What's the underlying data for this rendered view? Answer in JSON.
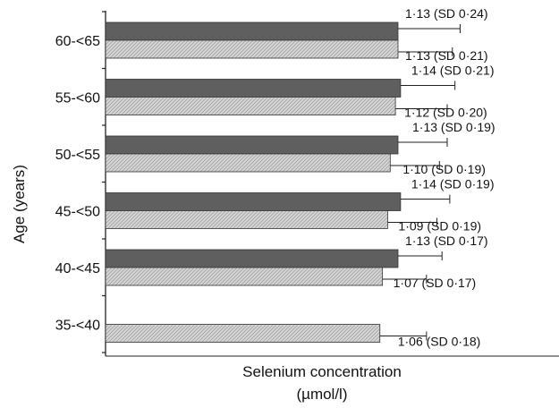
{
  "chart_data": {
    "type": "bar",
    "orientation": "horizontal",
    "ylabel": "Age (years)",
    "xlabel_lines": [
      "Selenium concentration",
      "(µmol/l)"
    ],
    "categories": [
      "60-<65",
      "55-<60",
      "50-<55",
      "45-<50",
      "40-<45",
      "35-<40"
    ],
    "series": [
      {
        "color": "#5f5f5f",
        "values": [
          1.13,
          1.14,
          1.13,
          1.14,
          1.13,
          null
        ],
        "sd": [
          0.24,
          0.21,
          0.19,
          0.19,
          0.17,
          null
        ],
        "labels": [
          "1·13 (SD 0·24)",
          "1·14 (SD 0·21)",
          "1·13 (SD 0·19)",
          "1·14 (SD 0·19)",
          "1·13 (SD 0·17)",
          ""
        ]
      },
      {
        "color": "#d2d2d2",
        "pattern": "hatched",
        "values": [
          1.13,
          1.12,
          1.1,
          1.09,
          1.07,
          1.06
        ],
        "sd": [
          0.21,
          0.2,
          0.19,
          0.19,
          0.17,
          0.18
        ],
        "labels": [
          "1·13 (SD 0·21)",
          "1·12 (SD 0·20)",
          "1·10 (SD 0·19)",
          "1·09 (SD 0·19)",
          "1·07 (SD 0·17)",
          "1·06 (SD 0·18)"
        ]
      }
    ],
    "xlim": [
      0,
      1.38
    ],
    "grid": false,
    "legend": "none"
  }
}
